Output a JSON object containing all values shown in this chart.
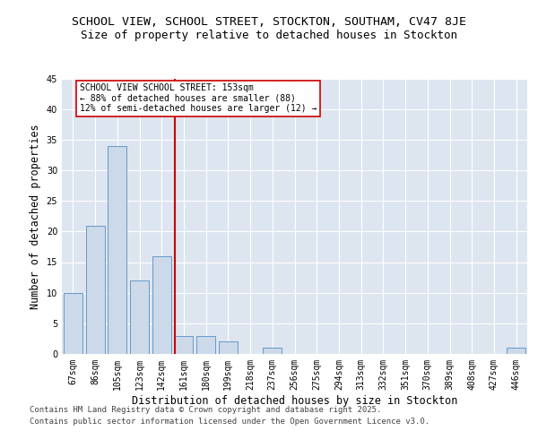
{
  "title": "SCHOOL VIEW, SCHOOL STREET, STOCKTON, SOUTHAM, CV47 8JE",
  "subtitle": "Size of property relative to detached houses in Stockton",
  "xlabel": "Distribution of detached houses by size in Stockton",
  "ylabel": "Number of detached properties",
  "categories": [
    "67sqm",
    "86sqm",
    "105sqm",
    "123sqm",
    "142sqm",
    "161sqm",
    "180sqm",
    "199sqm",
    "218sqm",
    "237sqm",
    "256sqm",
    "275sqm",
    "294sqm",
    "313sqm",
    "332sqm",
    "351sqm",
    "370sqm",
    "389sqm",
    "408sqm",
    "427sqm",
    "446sqm"
  ],
  "values": [
    10,
    21,
    34,
    12,
    16,
    3,
    3,
    2,
    0,
    1,
    0,
    0,
    0,
    0,
    0,
    0,
    0,
    0,
    0,
    0,
    1
  ],
  "bar_color": "#ccd9e8",
  "bar_edge_color": "#6699cc",
  "background_color": "#dde5f0",
  "grid_color": "#ffffff",
  "red_line_x": 4.58,
  "red_line_color": "#cc0000",
  "annotation_text": "SCHOOL VIEW SCHOOL STREET: 153sqm\n← 88% of detached houses are smaller (88)\n12% of semi-detached houses are larger (12) →",
  "annotation_box_color": "#cc0000",
  "ylim": [
    0,
    45
  ],
  "yticks": [
    0,
    5,
    10,
    15,
    20,
    25,
    30,
    35,
    40,
    45
  ],
  "footer_line1": "Contains HM Land Registry data © Crown copyright and database right 2025.",
  "footer_line2": "Contains public sector information licensed under the Open Government Licence v3.0.",
  "title_fontsize": 9.5,
  "subtitle_fontsize": 9,
  "tick_fontsize": 7,
  "ylabel_fontsize": 8.5,
  "xlabel_fontsize": 8.5,
  "annotation_fontsize": 7,
  "footer_fontsize": 6.5
}
